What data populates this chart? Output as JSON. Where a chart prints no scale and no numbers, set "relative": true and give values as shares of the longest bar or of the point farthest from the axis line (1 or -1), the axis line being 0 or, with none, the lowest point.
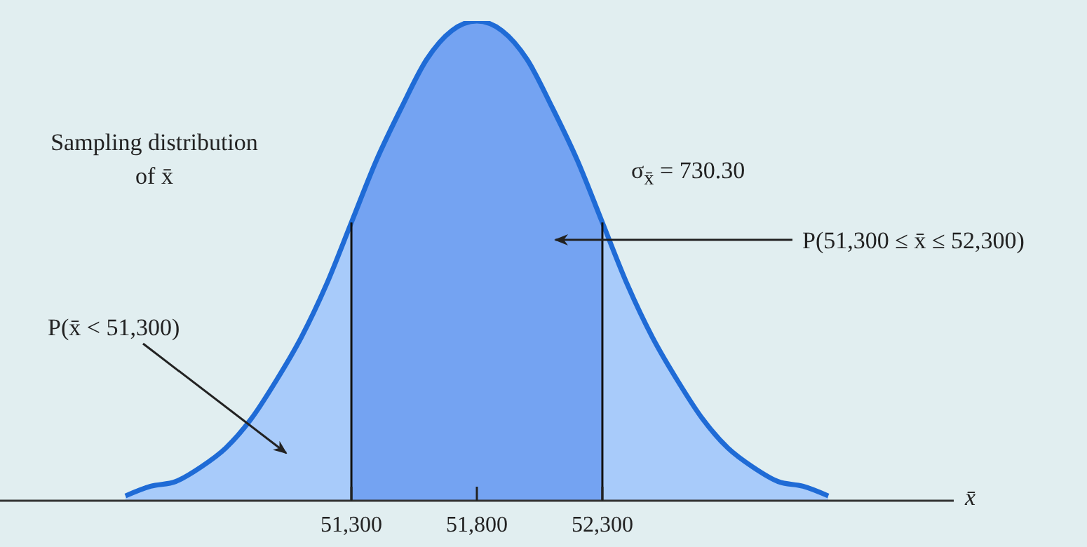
{
  "chart_data": {
    "type": "area",
    "relative": true,
    "xlim": [
      49900,
      53700
    ],
    "xticks": [
      {
        "value": 51300,
        "label": "51,300"
      },
      {
        "value": 51800,
        "label": "51,800"
      },
      {
        "value": 52300,
        "label": "52,300"
      }
    ],
    "xlabel": "x̄",
    "series": [
      {
        "color": "#a8cbfa",
        "x": [
          50400,
          50500,
          50600,
          50700,
          50800,
          50900,
          51000,
          51100,
          51200,
          51300
        ],
        "values": [
          0.01,
          0.03,
          0.04,
          0.07,
          0.11,
          0.17,
          0.25,
          0.34,
          0.45,
          0.58
        ]
      },
      {
        "color": "#74a3f2",
        "x": [
          51300,
          51400,
          51500,
          51600,
          51700,
          51800,
          51900,
          52000,
          52100,
          52200,
          52300
        ],
        "values": [
          0.58,
          0.71,
          0.82,
          0.92,
          0.98,
          1,
          0.98,
          0.92,
          0.82,
          0.71,
          0.58
        ]
      },
      {
        "color": "#a8cbfa",
        "x": [
          52300,
          52400,
          52500,
          52600,
          52700,
          52800,
          52900,
          53000,
          53100,
          53200
        ],
        "values": [
          0.58,
          0.45,
          0.34,
          0.25,
          0.17,
          0.11,
          0.07,
          0.04,
          0.03,
          0.01
        ]
      },
      {
        "type": "line",
        "color": "#1f6bd6",
        "x": [
          50400,
          50500,
          50600,
          50700,
          50800,
          50900,
          51000,
          51100,
          51200,
          51300,
          51400,
          51500,
          51600,
          51700,
          51800,
          51900,
          52000,
          52100,
          52200,
          52300,
          52400,
          52500,
          52600,
          52700,
          52800,
          52900,
          53000,
          53100,
          53200
        ],
        "values": [
          0.01,
          0.03,
          0.04,
          0.07,
          0.11,
          0.17,
          0.25,
          0.34,
          0.45,
          0.58,
          0.71,
          0.82,
          0.92,
          0.98,
          1,
          0.98,
          0.92,
          0.82,
          0.71,
          0.58,
          0.45,
          0.34,
          0.25,
          0.17,
          0.11,
          0.07,
          0.04,
          0.03,
          0.01
        ]
      }
    ],
    "ref_lines": [
      {
        "axis": "x",
        "value": 51300,
        "color": "#111111"
      },
      {
        "axis": "x",
        "value": 52300,
        "color": "#111111"
      }
    ],
    "annotations": [
      "Sampling distribution of x̄",
      "σ$_{x̄}$ = 730.30",
      "P(51,300 ≤ x̄ ≤ 52,300)",
      "P(x̄ < 51,300)"
    ]
  }
}
